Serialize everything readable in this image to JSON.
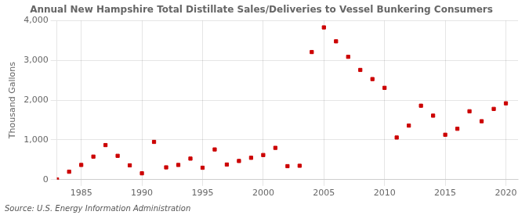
{
  "chart_data": {
    "type": "scatter",
    "title": "Annual New Hampshire Total Distillate Sales/Deliveries to Vessel Bunkering Consumers",
    "ylabel": "Thousand Gallons",
    "annotation": "Source: U.S. Energy Information Administration",
    "x": [
      1983,
      1984,
      1985,
      1986,
      1987,
      1988,
      1989,
      1990,
      1991,
      1992,
      1993,
      1994,
      1995,
      1996,
      1997,
      1998,
      1999,
      2000,
      2001,
      2002,
      2003,
      2004,
      2005,
      2006,
      2007,
      2008,
      2009,
      2010,
      2011,
      2012,
      2013,
      2014,
      2015,
      2016,
      2017,
      2018,
      2019,
      2020
    ],
    "values": [
      5,
      200,
      370,
      580,
      870,
      600,
      360,
      160,
      950,
      310,
      370,
      530,
      300,
      760,
      380,
      470,
      550,
      620,
      800,
      340,
      350,
      3210,
      3830,
      3480,
      3090,
      2760,
      2530,
      2310,
      1060,
      1360,
      1860,
      1610,
      1130,
      1280,
      1720,
      1470,
      1780,
      1920
    ],
    "color": "#cc0000",
    "marker": "square",
    "xlim": [
      1983,
      2021
    ],
    "xticks": [
      1985,
      1990,
      1995,
      2000,
      2005,
      2010,
      2015,
      2020
    ],
    "ylim": [
      0,
      4000
    ],
    "yticks": [
      0,
      {
        "value": 1000,
        "label": "1,000"
      },
      {
        "value": 2000,
        "label": "2,000"
      },
      {
        "value": 3000,
        "label": "3,000"
      },
      {
        "value": 4000,
        "label": "4,000"
      }
    ],
    "grid": true
  }
}
